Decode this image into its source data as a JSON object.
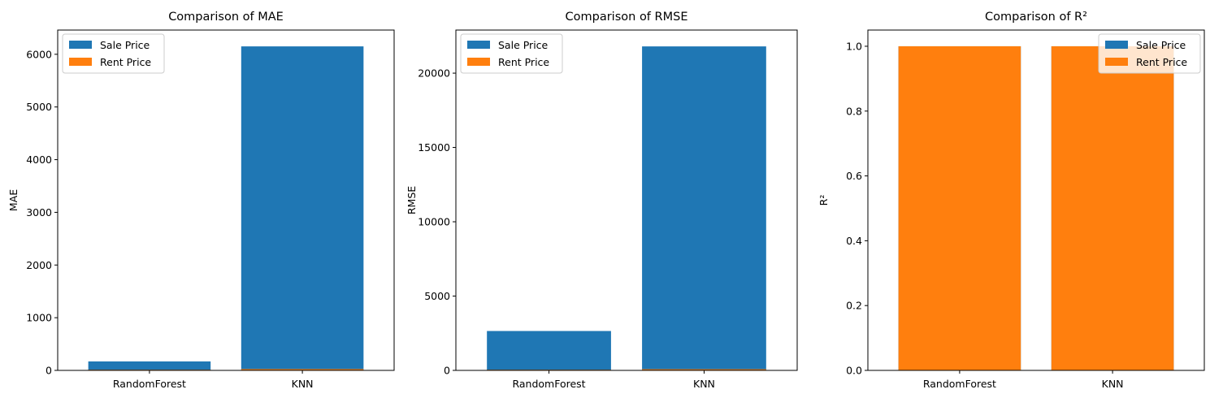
{
  "colors": {
    "sale": "#1f77b4",
    "rent": "#ff7f0e"
  },
  "legend": [
    "Sale Price",
    "Rent Price"
  ],
  "chart_data": [
    {
      "type": "bar",
      "title": "Comparison of MAE",
      "xlabel": "",
      "ylabel": "MAE",
      "categories": [
        "RandomForest",
        "KNN"
      ],
      "series": [
        {
          "name": "Sale Price",
          "values": [
            170,
            6150
          ]
        },
        {
          "name": "Rent Price",
          "values": [
            2,
            25
          ]
        }
      ],
      "ylim": [
        0,
        6460
      ],
      "yticks": [
        0,
        1000,
        2000,
        3000,
        4000,
        5000,
        6000
      ],
      "ytick_labels": [
        "0",
        "1000",
        "2000",
        "3000",
        "4000",
        "5000",
        "6000"
      ],
      "legend_position": "top-left"
    },
    {
      "type": "bar",
      "title": "Comparison of RMSE",
      "xlabel": "",
      "ylabel": "RMSE",
      "categories": [
        "RandomForest",
        "KNN"
      ],
      "series": [
        {
          "name": "Sale Price",
          "values": [
            2650,
            21800
          ]
        },
        {
          "name": "Rent Price",
          "values": [
            5,
            80
          ]
        }
      ],
      "ylim": [
        0,
        22900
      ],
      "yticks": [
        0,
        5000,
        10000,
        15000,
        20000
      ],
      "ytick_labels": [
        "0",
        "5000",
        "10000",
        "15000",
        "20000"
      ],
      "legend_position": "top-left"
    },
    {
      "type": "bar",
      "title": "Comparison of R²",
      "xlabel": "",
      "ylabel": "R²",
      "categories": [
        "RandomForest",
        "KNN"
      ],
      "series": [
        {
          "name": "Sale Price",
          "values": [
            1.0,
            1.0
          ]
        },
        {
          "name": "Rent Price",
          "values": [
            1.0,
            1.0
          ]
        }
      ],
      "ylim": [
        0,
        1.05
      ],
      "yticks": [
        0,
        0.2,
        0.4,
        0.6,
        0.8,
        1.0
      ],
      "ytick_labels": [
        "0.0",
        "0.2",
        "0.4",
        "0.6",
        "0.8",
        "1.0"
      ],
      "legend_position": "top-right"
    }
  ]
}
